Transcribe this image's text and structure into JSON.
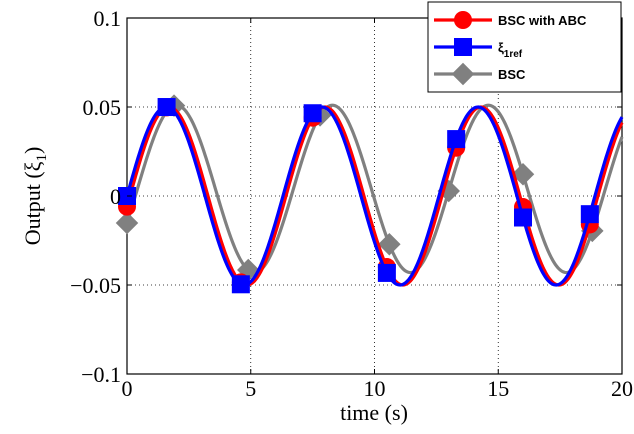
{
  "chart_data": {
    "type": "line",
    "title": "",
    "xlabel": "time (s)",
    "ylabel_main": "Output (ξ",
    "ylabel_sub": "1",
    "ylabel_close": ")",
    "xlim": [
      0,
      20
    ],
    "ylim": [
      -0.1,
      0.1
    ],
    "grid": true,
    "legend_position": "top-right",
    "x_ticks": [
      {
        "value": 0,
        "label": "0"
      },
      {
        "value": 5,
        "label": "5"
      },
      {
        "value": 10,
        "label": "10"
      },
      {
        "value": 15,
        "label": "15"
      },
      {
        "value": 20,
        "label": "20"
      }
    ],
    "y_ticks": [
      {
        "value": -0.1,
        "label": "−0.1"
      },
      {
        "value": -0.05,
        "label": "−0.05"
      },
      {
        "value": 0,
        "label": "0"
      },
      {
        "value": 0.05,
        "label": "0.05"
      },
      {
        "value": 0.1,
        "label": "0.1"
      }
    ],
    "series": [
      {
        "name": "BSC with ABC",
        "legend_main": "BSC with ABC",
        "legend_sub": "",
        "color": "#ff0000",
        "marker": "circle",
        "curve": {
          "amplitude": 0.05,
          "omega": 0.997,
          "phase": 0.12,
          "offset": 0.0
        },
        "marker_x": [
          0,
          1.6,
          4.6,
          7.5,
          10.5,
          13.3,
          16,
          18.7
        ]
      },
      {
        "name": "ξ1ref",
        "legend_main": "ξ",
        "legend_sub": "1ref",
        "color": "#0000ff",
        "marker": "square",
        "curve": {
          "amplitude": 0.05,
          "omega": 0.997,
          "phase": 0.0,
          "offset": 0.0
        },
        "marker_x": [
          0,
          1.6,
          4.6,
          7.5,
          10.5,
          13.3,
          16,
          18.7
        ]
      },
      {
        "name": "BSC",
        "legend_main": "BSC",
        "legend_sub": "",
        "color": "#808080",
        "marker": "diamond",
        "curve": {
          "amplitude": 0.047,
          "omega": 0.997,
          "phase": 0.42,
          "offset": 0.004
        },
        "marker_x": [
          0,
          1.9,
          4.9,
          7.8,
          10.6,
          13.0,
          16.0,
          18.8
        ]
      }
    ]
  }
}
